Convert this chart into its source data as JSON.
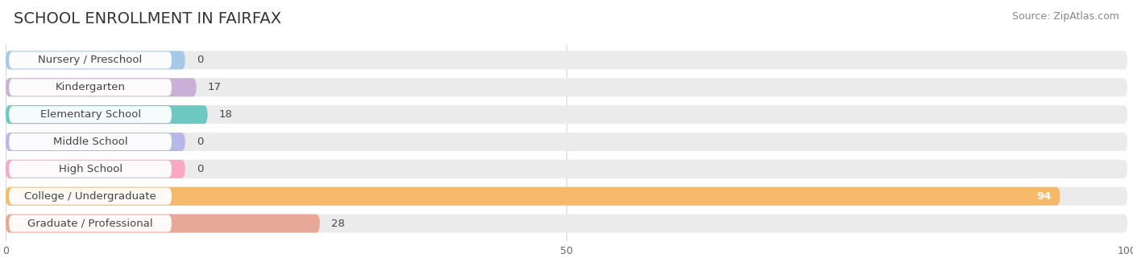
{
  "title": "SCHOOL ENROLLMENT IN FAIRFAX",
  "source": "Source: ZipAtlas.com",
  "categories": [
    "Nursery / Preschool",
    "Kindergarten",
    "Elementary School",
    "Middle School",
    "High School",
    "College / Undergraduate",
    "Graduate / Professional"
  ],
  "values": [
    0,
    17,
    18,
    0,
    0,
    94,
    28
  ],
  "bar_colors": [
    "#a8c8e8",
    "#c8b0d8",
    "#6cc8c0",
    "#b8b8e8",
    "#f8a8c0",
    "#f5b96a",
    "#e8a898"
  ],
  "bar_bg_color": "#ebebeb",
  "xlim": [
    0,
    100
  ],
  "xticks": [
    0,
    50,
    100
  ],
  "title_fontsize": 14,
  "source_fontsize": 9,
  "label_fontsize": 9.5,
  "value_fontsize": 9.5,
  "bar_height": 0.68,
  "background_color": "#ffffff",
  "grid_color": "#d8d8d8",
  "label_color": "#444444",
  "value_label_inside_color": "#ffffff",
  "value_label_outside_color": "#444444"
}
